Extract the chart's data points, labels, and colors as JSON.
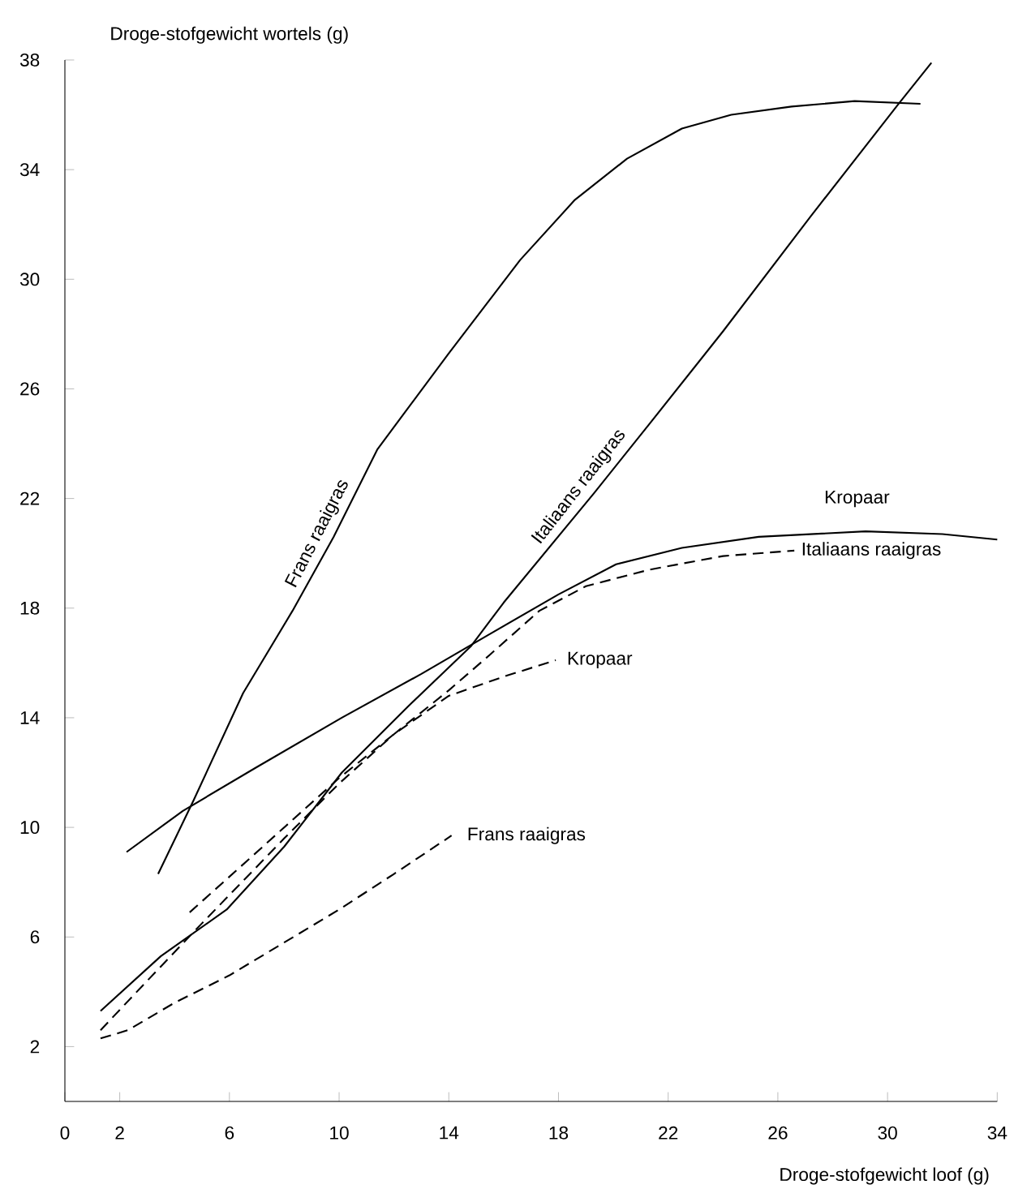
{
  "chart_data": {
    "type": "line",
    "xlabel": "Droge-stofgewicht loof (g)",
    "ylabel": "Droge-stofgewicht wortels (g)",
    "xlim": [
      0,
      34
    ],
    "ylim": [
      0,
      38
    ],
    "xticks": [
      0,
      2,
      6,
      10,
      14,
      18,
      22,
      26,
      30,
      34
    ],
    "yticks": [
      2,
      6,
      10,
      14,
      18,
      22,
      26,
      30,
      34,
      38
    ],
    "series": [
      {
        "name": "Frans raaigras",
        "color": "#000000",
        "line_style": "solid",
        "x": [
          3.4,
          4.7,
          6.5,
          8.3,
          9.8,
          11.4,
          14,
          16.6,
          18.6,
          20.5,
          22.5,
          24.3,
          26.5,
          28.8,
          31.2
        ],
        "values": [
          8.3,
          11.0,
          14.9,
          17.9,
          20.6,
          23.8,
          27.3,
          30.7,
          32.9,
          34.4,
          35.5,
          36.0,
          36.3,
          36.5,
          36.4
        ]
      },
      {
        "name": "Italiaans raaigras",
        "color": "#000000",
        "line_style": "solid",
        "x": [
          1.3,
          3.5,
          5.9,
          8,
          10.1,
          12.5,
          14.8,
          16,
          19.3,
          21.3,
          24,
          27.2,
          30.4,
          31.6
        ],
        "values": [
          3.3,
          5.3,
          7.0,
          9.3,
          12.0,
          14.4,
          16.6,
          18.2,
          22.2,
          24.7,
          28.1,
          32.3,
          36.4,
          37.9
        ]
      },
      {
        "name": "Kropaar",
        "color": "#000000",
        "line_style": "solid",
        "x": [
          2.25,
          4.3,
          7,
          10.1,
          13,
          15.4,
          18,
          20.1,
          22.5,
          25.3,
          29.2,
          32,
          34
        ],
        "values": [
          9.1,
          10.6,
          12.2,
          14.0,
          15.6,
          17.0,
          18.5,
          19.6,
          20.2,
          20.6,
          20.8,
          20.7,
          20.5
        ]
      },
      {
        "name": "Italiaans raaigras",
        "color": "#000000",
        "line_style": "dashed",
        "x": [
          1.3,
          3,
          5,
          8,
          10,
          12,
          14,
          15.5,
          17.3,
          19,
          21.3,
          24,
          26.6
        ],
        "values": [
          2.6,
          4.4,
          6.5,
          9.6,
          11.6,
          13.4,
          15.0,
          16.3,
          17.9,
          18.8,
          19.4,
          19.9,
          20.1
        ]
      },
      {
        "name": "Kropaar",
        "color": "#000000",
        "line_style": "dashed",
        "x": [
          4.55,
          6,
          8,
          10,
          12,
          14,
          16,
          17.9
        ],
        "values": [
          6.9,
          8.2,
          10.0,
          11.8,
          13.4,
          14.8,
          15.5,
          16.1
        ]
      },
      {
        "name": "Frans raaigras",
        "color": "#000000",
        "line_style": "dashed",
        "x": [
          1.3,
          2.3,
          4,
          6,
          8,
          10,
          12,
          14.1
        ],
        "values": [
          2.3,
          2.6,
          3.6,
          4.6,
          5.8,
          7.0,
          8.3,
          9.7
        ]
      }
    ]
  }
}
